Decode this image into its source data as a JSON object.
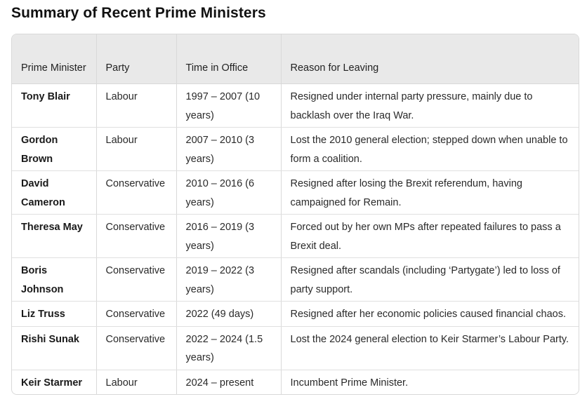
{
  "title": "Summary of Recent Prime Ministers",
  "columns": {
    "pm": "Prime Minister",
    "party": "Party",
    "time": "Time in Office",
    "reason": "Reason for Leaving"
  },
  "rows": [
    {
      "pm": "Tony Blair",
      "party": "Labour",
      "time": "1997 – 2007 (10 years)",
      "reason": "Resigned under internal party pressure, mainly due to backlash over the Iraq War."
    },
    {
      "pm": "Gordon Brown",
      "party": "Labour",
      "time": "2007 – 2010 (3 years)",
      "reason": "Lost the 2010 general election; stepped down when unable to form a coalition."
    },
    {
      "pm": "David Cameron",
      "party": "Conservative",
      "time": "2010 – 2016 (6 years)",
      "reason": "Resigned after losing the Brexit referendum, having campaigned for Remain."
    },
    {
      "pm": "Theresa May",
      "party": "Conservative",
      "time": "2016 – 2019 (3 years)",
      "reason": "Forced out by her own MPs after repeated failures to pass a Brexit deal."
    },
    {
      "pm": "Boris Johnson",
      "party": "Conservative",
      "time": "2019 – 2022 (3 years)",
      "reason": "Resigned after scandals (including ‘Partygate’) led to loss of party support."
    },
    {
      "pm": "Liz Truss",
      "party": "Conservative",
      "time": "2022 (49 days)",
      "reason": "Resigned after her economic policies caused financial chaos."
    },
    {
      "pm": "Rishi Sunak",
      "party": "Conservative",
      "time": "2022 – 2024 (1.5 years)",
      "reason": "Lost the 2024 general election to Keir Starmer’s Labour Party."
    },
    {
      "pm": "Keir Starmer",
      "party": "Labour",
      "time": "2024 – present",
      "reason": "Incumbent Prime Minister."
    }
  ]
}
